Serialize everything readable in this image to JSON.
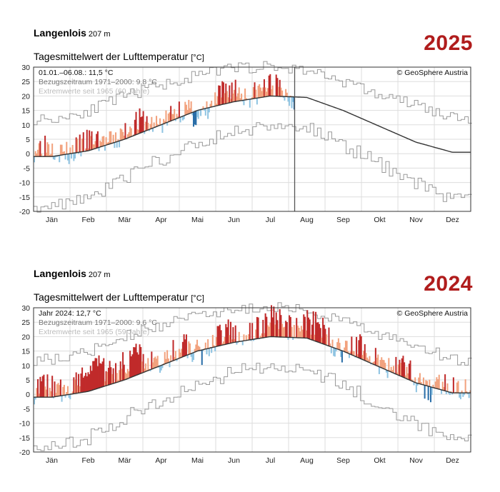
{
  "chart_data": [
    {
      "type": "area",
      "station": "Langenlois",
      "altitude": "207 m",
      "title": "Tagesmittelwert der Lufttemperatur",
      "unit": "[°C]",
      "year_label": "2025",
      "summary": "01.01.–06.08.: 11,5 °C",
      "reference_label": "Bezugszeitraum 1971–2000: 9,8 °C",
      "extremes_label": "Extremwerte seit 1965 (60 Jahre)",
      "credit": "© GeoSphere Austria",
      "ylim": [
        -20,
        30
      ],
      "yticks": [
        "30",
        "25",
        "20",
        "15",
        "10",
        "5",
        "0",
        "-5",
        "-10",
        "-15",
        "-20"
      ],
      "months": [
        "Jän",
        "Feb",
        "Mär",
        "Apr",
        "Mai",
        "Jun",
        "Jul",
        "Aug",
        "Sep",
        "Okt",
        "Nov",
        "Dez"
      ],
      "current_day_marker": 218,
      "series": [
        {
          "name": "observed_monthly_mean_approx",
          "values": [
            1.5,
            2.5,
            7.5,
            12.5,
            14.0,
            22.0,
            22.0,
            20.0,
            null,
            null,
            null,
            null
          ]
        },
        {
          "name": "reference_normal_monthly",
          "values": [
            -1.0,
            1.0,
            5.0,
            10.0,
            15.0,
            18.0,
            20.0,
            19.5,
            15.0,
            9.5,
            4.0,
            0.5
          ]
        },
        {
          "name": "extreme_max_monthly",
          "values": [
            12,
            15,
            20,
            24,
            27,
            30,
            30,
            29,
            25,
            20,
            17,
            12
          ]
        },
        {
          "name": "extreme_min_monthly",
          "values": [
            -18,
            -15,
            -8,
            -2,
            3,
            8,
            10,
            9,
            3,
            -4,
            -10,
            -16
          ]
        }
      ]
    },
    {
      "type": "area",
      "station": "Langenlois",
      "altitude": "207 m",
      "title": "Tagesmittelwert der Lufttemperatur",
      "unit": "[°C]",
      "year_label": "2024",
      "summary": "Jahr 2024: 12,7 °C",
      "reference_label": "Bezugszeitraum 1971–2000: 9,6 °C",
      "extremes_label": "Extremwerte seit 1965 (59 Jahre)",
      "credit": "© GeoSphere Austria",
      "ylim": [
        -20,
        30
      ],
      "yticks": [
        "30",
        "25",
        "20",
        "15",
        "10",
        "5",
        "0",
        "-5",
        "-10",
        "-15",
        "-20"
      ],
      "months": [
        "Jän",
        "Feb",
        "Mär",
        "Apr",
        "Mai",
        "Jun",
        "Jul",
        "Aug",
        "Sep",
        "Okt",
        "Nov",
        "Dez"
      ],
      "series": [
        {
          "name": "observed_monthly_mean_approx",
          "values": [
            1.0,
            8.0,
            11.0,
            12.5,
            16.0,
            21.0,
            25.0,
            24.5,
            16.5,
            12.0,
            4.5,
            2.0
          ]
        },
        {
          "name": "reference_normal_monthly",
          "values": [
            -1.0,
            1.0,
            5.0,
            10.0,
            15.0,
            18.0,
            20.0,
            19.5,
            15.0,
            9.5,
            4.0,
            0.5
          ]
        },
        {
          "name": "extreme_max_monthly",
          "values": [
            12,
            15,
            20,
            24,
            27,
            30,
            30,
            29,
            25,
            20,
            17,
            12
          ]
        },
        {
          "name": "extreme_min_monthly",
          "values": [
            -18,
            -15,
            -8,
            -2,
            3,
            8,
            10,
            9,
            3,
            -4,
            -10,
            -16
          ]
        }
      ]
    }
  ],
  "colors": {
    "above_normal": "#f2a27e",
    "far_above": "#c02a2a",
    "below_normal": "#8fc4e2",
    "far_below": "#2a6ea8",
    "normal_line": "#333333",
    "extremes": "#9a9a9a",
    "grid": "#dddddd",
    "year_label": "#b01c1c"
  }
}
